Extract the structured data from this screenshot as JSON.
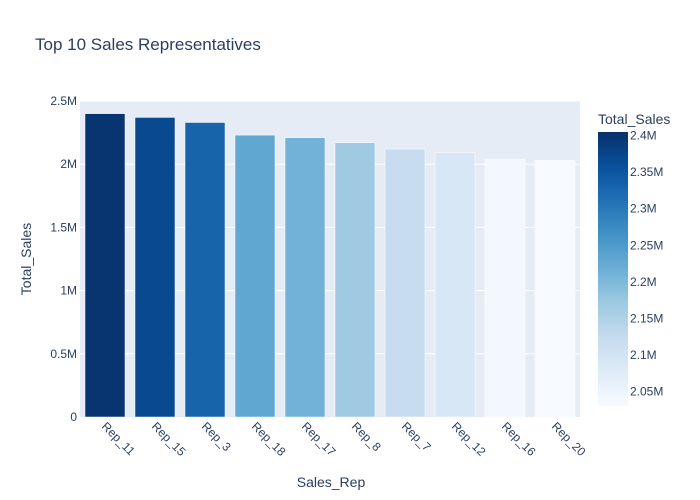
{
  "chart_data": {
    "type": "bar",
    "title": "Top 10 Sales Representatives",
    "xlabel": "Sales_Rep",
    "ylabel": "Total_Sales",
    "categories": [
      "Rep_11",
      "Rep_15",
      "Rep_3",
      "Rep_18",
      "Rep_17",
      "Rep_8",
      "Rep_7",
      "Rep_12",
      "Rep_16",
      "Rep_20"
    ],
    "values": [
      2400000,
      2370000,
      2330000,
      2230000,
      2210000,
      2170000,
      2120000,
      2090000,
      2040000,
      2030000
    ],
    "ylim": [
      0,
      2500000
    ],
    "yticks": [
      0,
      500000,
      1000000,
      1500000,
      2000000,
      2500000
    ],
    "ytick_labels": [
      "0",
      "0.5M",
      "1M",
      "1.5M",
      "2M",
      "2.5M"
    ],
    "grid": true,
    "colorbar": {
      "title": "Total_Sales",
      "range": [
        2030000,
        2405000
      ],
      "ticks": [
        2050000,
        2100000,
        2150000,
        2200000,
        2250000,
        2300000,
        2350000,
        2400000
      ],
      "tick_labels": [
        "2.05M",
        "2.1M",
        "2.15M",
        "2.2M",
        "2.25M",
        "2.3M",
        "2.35M",
        "2.4M"
      ],
      "colorscale": [
        "#f7fbff",
        "#deebf7",
        "#c6dbef",
        "#9ecae1",
        "#6baed6",
        "#4292c6",
        "#2171b5",
        "#08519c",
        "#08306b"
      ]
    },
    "colors": {
      "plot_bg": "#e5ecf6",
      "grid": "#ffffff",
      "text": "#2a3f5f",
      "bar_outline": "#ffffff"
    }
  }
}
